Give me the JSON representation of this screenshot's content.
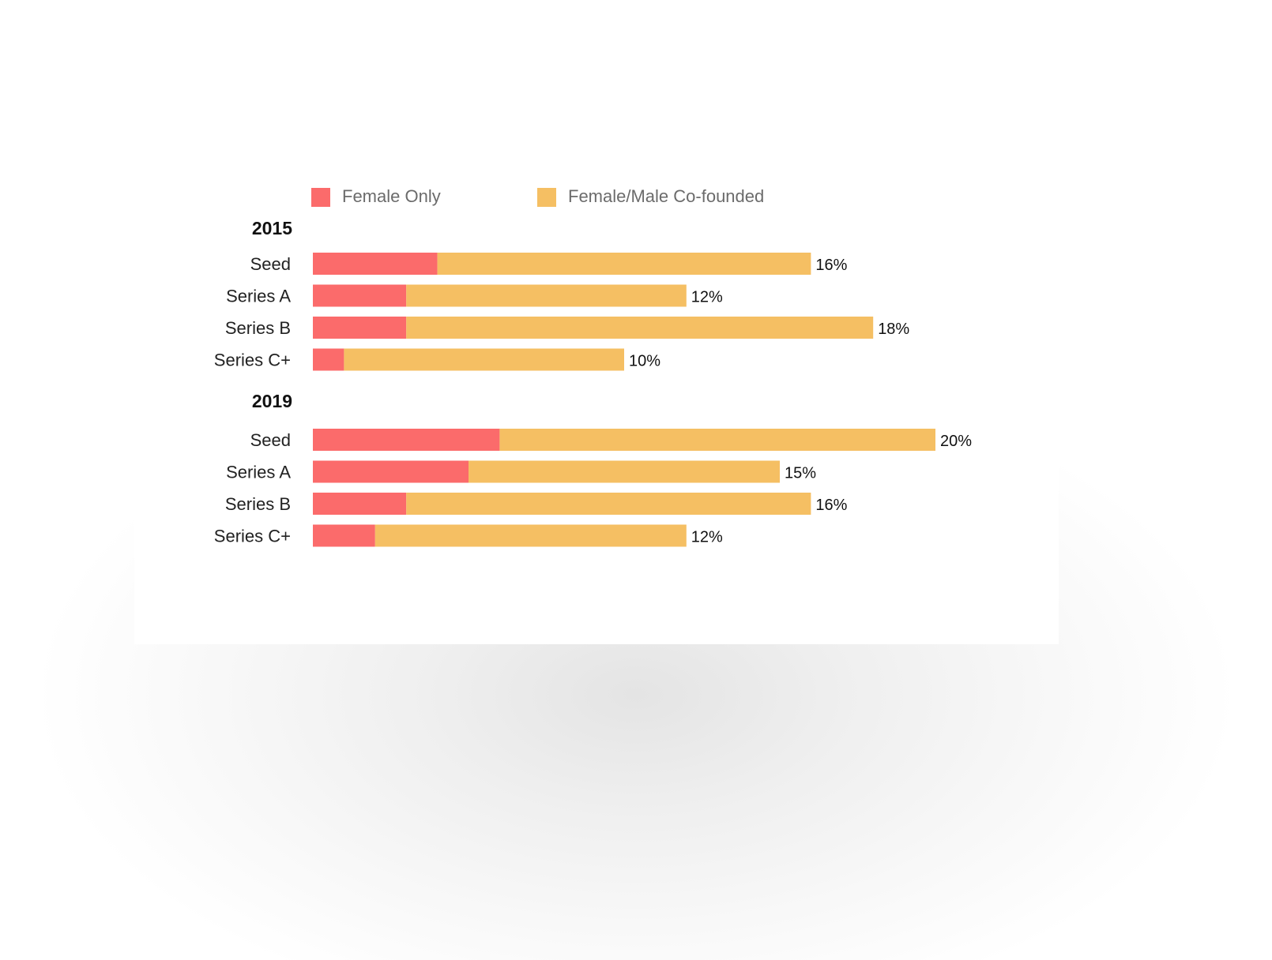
{
  "legend": {
    "female_only": "Female Only",
    "cofounded": "Female/Male Co-founded"
  },
  "colors": {
    "female_only": "#fb6b6b",
    "cofounded": "#f5bf63"
  },
  "chart_data": {
    "type": "bar",
    "orientation": "horizontal",
    "stacked": true,
    "legend": [
      "Female Only",
      "Female/Male Co-founded"
    ],
    "legend_position": "top",
    "grid": false,
    "xlim": [
      0,
      20
    ],
    "groups": [
      {
        "label": "2015",
        "categories": [
          "Seed",
          "Series A",
          "Series B",
          "Series C+"
        ],
        "series": [
          {
            "name": "Female Only",
            "values": [
              4,
              3,
              3,
              1
            ]
          },
          {
            "name": "Female/Male Co-founded",
            "values": [
              12,
              9,
              15,
              9
            ]
          }
        ],
        "totals": [
          16,
          12,
          18,
          10
        ],
        "total_labels": [
          "16%",
          "12%",
          "18%",
          "10%"
        ]
      },
      {
        "label": "2019",
        "categories": [
          "Seed",
          "Series A",
          "Series B",
          "Series C+"
        ],
        "series": [
          {
            "name": "Female Only",
            "values": [
              6,
              5,
              3,
              2
            ]
          },
          {
            "name": "Female/Male Co-founded",
            "values": [
              14,
              10,
              13,
              10
            ]
          }
        ],
        "totals": [
          20,
          15,
          16,
          12
        ],
        "total_labels": [
          "20%",
          "15%",
          "16%",
          "12%"
        ]
      }
    ]
  }
}
